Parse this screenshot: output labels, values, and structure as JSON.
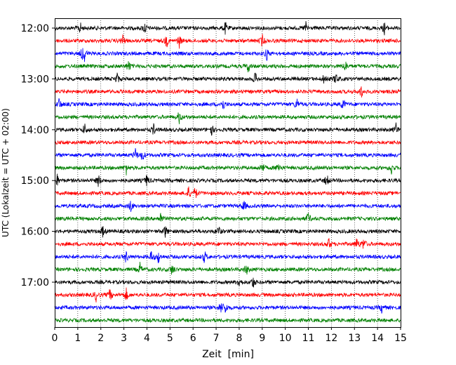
{
  "chart_data": {
    "type": "line",
    "subtype": "seismic-helicorder",
    "xlabel": "Zeit  [min]",
    "ylabel": "UTC (Lokalzeit = UTC + 02:00)",
    "xlim": [
      0,
      15
    ],
    "x_ticks": [
      0,
      1,
      2,
      3,
      4,
      5,
      6,
      7,
      8,
      9,
      10,
      11,
      12,
      13,
      14,
      15
    ],
    "x_grid": "dotted-vertical",
    "y_tick_labels": [
      "12:00",
      "13:00",
      "14:00",
      "15:00",
      "16:00",
      "17:00"
    ],
    "minutes_per_trace": 15,
    "trace_colors": [
      "#000000",
      "#ff0000",
      "#0000ff",
      "#008000"
    ],
    "traces": [
      {
        "start": "12:00",
        "color": "#000000",
        "events_min": [
          1.1,
          3.9,
          7.4,
          10.9,
          14.3
        ]
      },
      {
        "start": "12:15",
        "color": "#ff0000",
        "events_min": [
          2.95,
          4.85,
          5.4,
          9.0
        ]
      },
      {
        "start": "12:30",
        "color": "#0000ff",
        "events_min": [
          1.2,
          1.3,
          9.2
        ]
      },
      {
        "start": "12:45",
        "color": "#008000",
        "events_min": [
          3.2,
          8.4,
          12.6
        ]
      },
      {
        "start": "13:00",
        "color": "#000000",
        "events_min": [
          2.7,
          8.7,
          11.7,
          12.2
        ]
      },
      {
        "start": "13:15",
        "color": "#ff0000",
        "events_min": [
          13.3
        ]
      },
      {
        "start": "13:30",
        "color": "#0000ff",
        "events_min": [
          0.2,
          7.3,
          10.5,
          12.5
        ]
      },
      {
        "start": "13:45",
        "color": "#008000",
        "events_min": [
          5.4
        ]
      },
      {
        "start": "14:00",
        "color": "#000000",
        "events_min": [
          1.3,
          4.3,
          6.8,
          14.8
        ]
      },
      {
        "start": "14:15",
        "color": "#ff0000",
        "events_min": []
      },
      {
        "start": "14:30",
        "color": "#0000ff",
        "events_min": [
          3.5,
          3.8
        ]
      },
      {
        "start": "14:45",
        "color": "#008000",
        "events_min": [
          3.1,
          9.0,
          9.7,
          14.6
        ]
      },
      {
        "start": "15:00",
        "color": "#000000",
        "events_min": [
          0.1,
          1.9,
          4.0,
          11.8
        ]
      },
      {
        "start": "15:15",
        "color": "#ff0000",
        "events_min": [
          5.8,
          6.1
        ]
      },
      {
        "start": "15:30",
        "color": "#0000ff",
        "events_min": [
          3.3,
          8.2
        ]
      },
      {
        "start": "15:45",
        "color": "#008000",
        "events_min": [
          4.6,
          11.0
        ]
      },
      {
        "start": "16:00",
        "color": "#000000",
        "events_min": [
          2.1,
          4.8,
          7.1
        ]
      },
      {
        "start": "16:15",
        "color": "#ff0000",
        "events_min": [
          11.9,
          13.1,
          13.4
        ]
      },
      {
        "start": "16:30",
        "color": "#0000ff",
        "events_min": [
          3.1,
          4.2,
          4.5,
          6.5
        ]
      },
      {
        "start": "16:45",
        "color": "#008000",
        "events_min": [
          3.7,
          5.1,
          8.3
        ]
      },
      {
        "start": "17:00",
        "color": "#000000",
        "events_min": [
          8.0,
          8.6
        ]
      },
      {
        "start": "17:15",
        "color": "#ff0000",
        "events_min": [
          1.8,
          2.4,
          3.1
        ]
      },
      {
        "start": "17:30",
        "color": "#0000ff",
        "events_min": [
          7.2,
          7.4,
          14.2
        ]
      },
      {
        "start": "17:45",
        "color": "#008000",
        "events_min": []
      }
    ]
  }
}
